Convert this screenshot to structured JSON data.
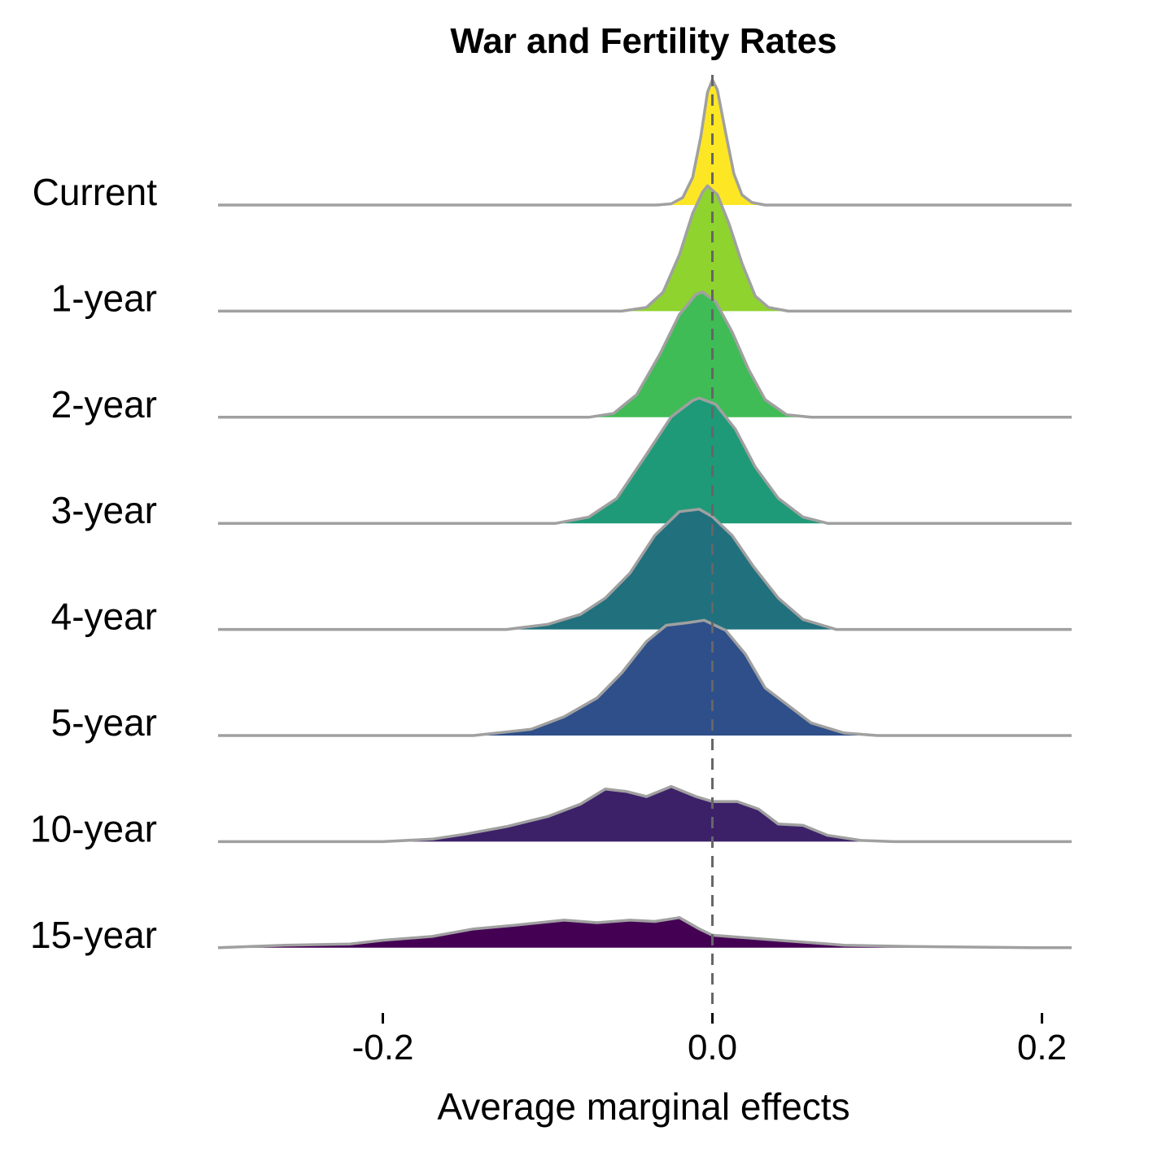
{
  "chart_data": {
    "type": "ridgeline",
    "title": "War and Fertility Rates",
    "xlabel": "Average marginal effects",
    "ylabel": "",
    "xlim": [
      -0.3,
      0.218
    ],
    "x_ticks": [
      -0.2,
      0.0,
      0.2
    ],
    "x_tick_labels": [
      "-0.2",
      "0.0",
      "0.2"
    ],
    "reference_line": {
      "x": 0.0,
      "style": "dashed",
      "color": "#666666"
    },
    "outline_color": "#a0a0a0",
    "grid": false,
    "legend": "none",
    "series": [
      {
        "name": "Current",
        "color": "#fde725",
        "density": [
          [
            -0.034,
            0
          ],
          [
            -0.025,
            0.01
          ],
          [
            -0.018,
            0.06
          ],
          [
            -0.012,
            0.22
          ],
          [
            -0.007,
            0.55
          ],
          [
            -0.003,
            0.9
          ],
          [
            0.0,
            1.0
          ],
          [
            0.003,
            0.92
          ],
          [
            0.008,
            0.58
          ],
          [
            0.013,
            0.25
          ],
          [
            0.018,
            0.08
          ],
          [
            0.024,
            0.02
          ],
          [
            0.032,
            0
          ]
        ]
      },
      {
        "name": "1-year",
        "color": "#8fd32e",
        "density": [
          [
            -0.055,
            0
          ],
          [
            -0.04,
            0.03
          ],
          [
            -0.03,
            0.15
          ],
          [
            -0.02,
            0.45
          ],
          [
            -0.012,
            0.78
          ],
          [
            -0.006,
            0.95
          ],
          [
            -0.003,
            1.0
          ],
          [
            0.003,
            0.93
          ],
          [
            0.01,
            0.7
          ],
          [
            0.018,
            0.38
          ],
          [
            0.026,
            0.12
          ],
          [
            0.034,
            0.03
          ],
          [
            0.046,
            0
          ]
        ]
      },
      {
        "name": "2-year",
        "color": "#3fbc56",
        "density": [
          [
            -0.075,
            0
          ],
          [
            -0.06,
            0.03
          ],
          [
            -0.046,
            0.18
          ],
          [
            -0.032,
            0.5
          ],
          [
            -0.02,
            0.82
          ],
          [
            -0.01,
            0.98
          ],
          [
            -0.006,
            1.0
          ],
          [
            0.002,
            0.92
          ],
          [
            0.012,
            0.68
          ],
          [
            0.022,
            0.38
          ],
          [
            0.032,
            0.14
          ],
          [
            0.045,
            0.02
          ],
          [
            0.06,
            0
          ]
        ]
      },
      {
        "name": "3-year",
        "color": "#1f9a78",
        "density": [
          [
            -0.095,
            0
          ],
          [
            -0.075,
            0.05
          ],
          [
            -0.058,
            0.2
          ],
          [
            -0.04,
            0.55
          ],
          [
            -0.025,
            0.85
          ],
          [
            -0.012,
            0.98
          ],
          [
            -0.008,
            1.0
          ],
          [
            0.002,
            0.95
          ],
          [
            0.014,
            0.75
          ],
          [
            0.026,
            0.45
          ],
          [
            0.04,
            0.2
          ],
          [
            0.055,
            0.05
          ],
          [
            0.07,
            0
          ]
        ]
      },
      {
        "name": "4-year",
        "color": "#21707e",
        "density": [
          [
            -0.125,
            0
          ],
          [
            -0.1,
            0.04
          ],
          [
            -0.08,
            0.12
          ],
          [
            -0.065,
            0.25
          ],
          [
            -0.05,
            0.45
          ],
          [
            -0.035,
            0.75
          ],
          [
            -0.02,
            0.94
          ],
          [
            -0.008,
            0.96
          ],
          [
            0.0,
            0.9
          ],
          [
            0.012,
            0.75
          ],
          [
            0.025,
            0.5
          ],
          [
            0.04,
            0.25
          ],
          [
            0.055,
            0.08
          ],
          [
            0.075,
            0
          ]
        ]
      },
      {
        "name": "5-year",
        "color": "#2e4f89",
        "density": [
          [
            -0.145,
            0
          ],
          [
            -0.11,
            0.05
          ],
          [
            -0.09,
            0.15
          ],
          [
            -0.07,
            0.3
          ],
          [
            -0.055,
            0.5
          ],
          [
            -0.04,
            0.75
          ],
          [
            -0.028,
            0.88
          ],
          [
            -0.015,
            0.9
          ],
          [
            -0.005,
            0.92
          ],
          [
            0.008,
            0.84
          ],
          [
            0.02,
            0.65
          ],
          [
            0.032,
            0.38
          ],
          [
            0.045,
            0.25
          ],
          [
            0.06,
            0.1
          ],
          [
            0.08,
            0.02
          ],
          [
            0.1,
            0
          ]
        ]
      },
      {
        "name": "10-year",
        "color": "#3c2169",
        "density": [
          [
            -0.2,
            0
          ],
          [
            -0.17,
            0.02
          ],
          [
            -0.15,
            0.06
          ],
          [
            -0.125,
            0.12
          ],
          [
            -0.1,
            0.2
          ],
          [
            -0.08,
            0.3
          ],
          [
            -0.065,
            0.42
          ],
          [
            -0.052,
            0.4
          ],
          [
            -0.04,
            0.36
          ],
          [
            -0.025,
            0.44
          ],
          [
            -0.01,
            0.36
          ],
          [
            0.0,
            0.32
          ],
          [
            0.015,
            0.32
          ],
          [
            0.028,
            0.26
          ],
          [
            0.04,
            0.14
          ],
          [
            0.055,
            0.13
          ],
          [
            0.07,
            0.05
          ],
          [
            0.09,
            0.01
          ],
          [
            0.11,
            0
          ]
        ]
      },
      {
        "name": "15-year",
        "color": "#440154",
        "density": [
          [
            -0.3,
            0
          ],
          [
            -0.26,
            0.02
          ],
          [
            -0.22,
            0.03
          ],
          [
            -0.2,
            0.06
          ],
          [
            -0.17,
            0.09
          ],
          [
            -0.145,
            0.15
          ],
          [
            -0.12,
            0.18
          ],
          [
            -0.09,
            0.22
          ],
          [
            -0.07,
            0.2
          ],
          [
            -0.05,
            0.22
          ],
          [
            -0.035,
            0.21
          ],
          [
            -0.02,
            0.24
          ],
          [
            -0.008,
            0.15
          ],
          [
            0.0,
            0.1
          ],
          [
            0.02,
            0.08
          ],
          [
            0.04,
            0.06
          ],
          [
            0.06,
            0.04
          ],
          [
            0.08,
            0.02
          ],
          [
            0.12,
            0.01
          ],
          [
            0.2,
            0
          ]
        ]
      }
    ]
  }
}
